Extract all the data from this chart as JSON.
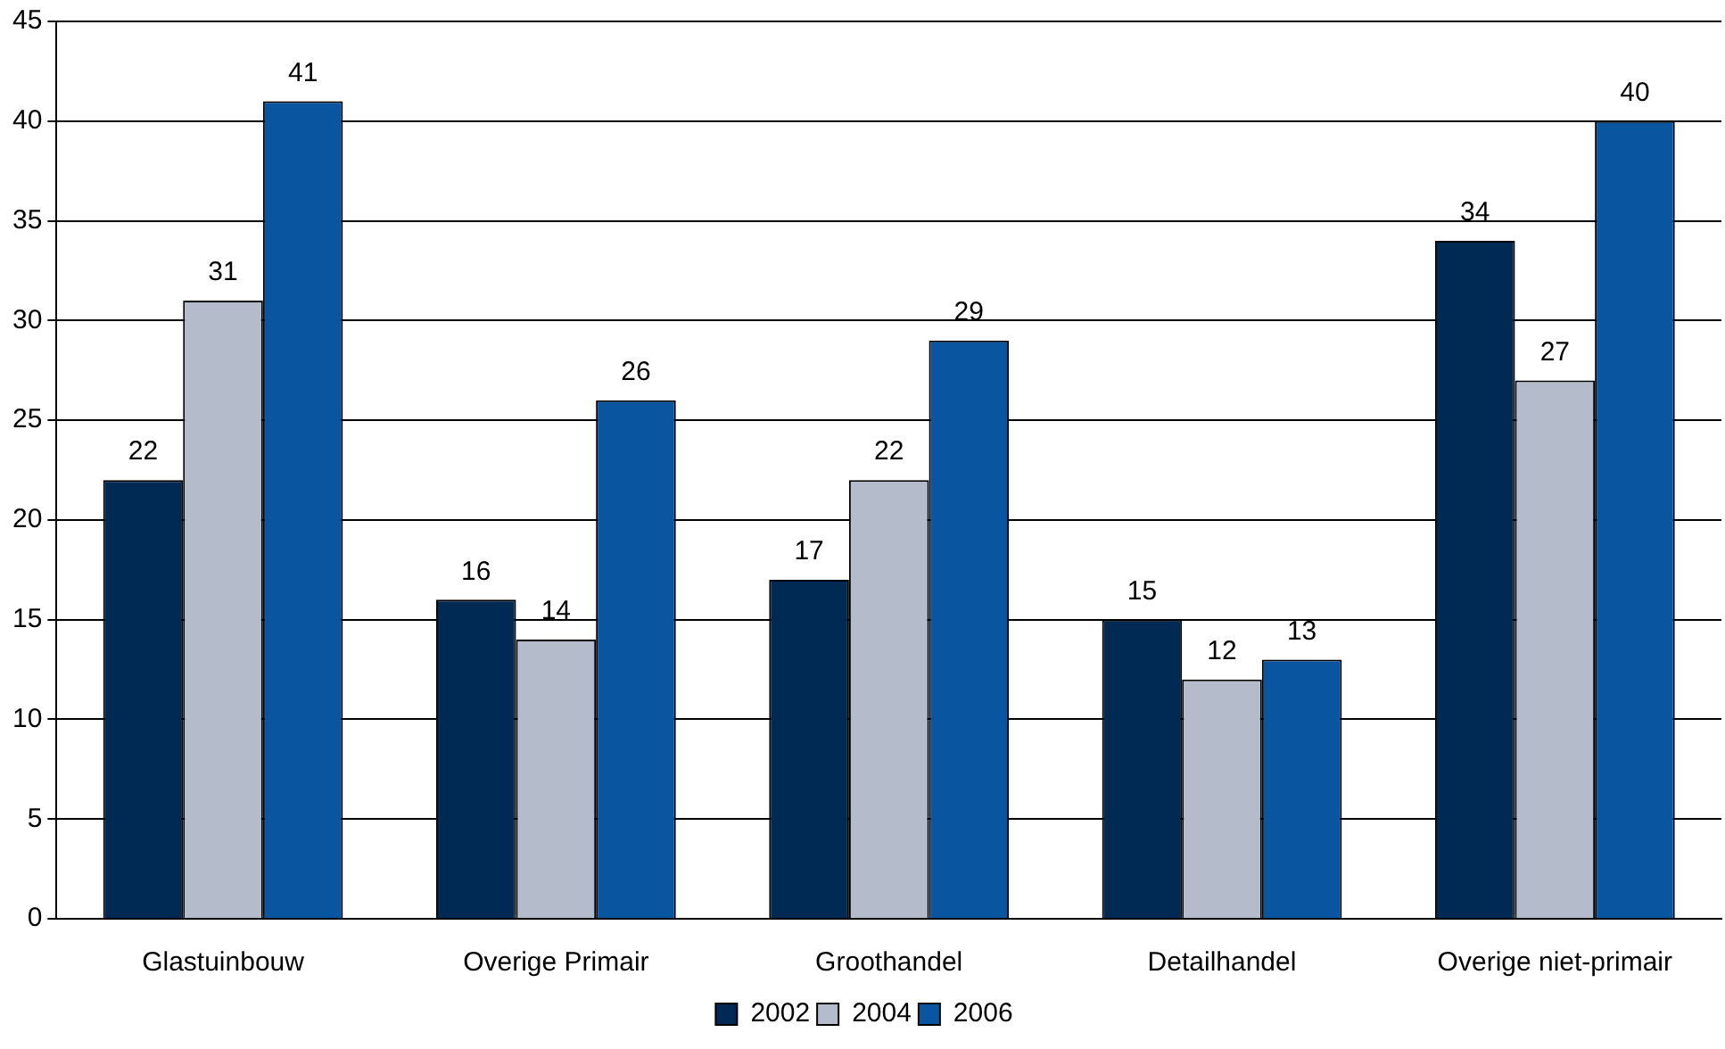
{
  "chart_data": {
    "type": "bar",
    "categories": [
      "Glastuinbouw",
      "Overige Primair",
      "Groothandel",
      "Detailhandel",
      "Overige niet-primair"
    ],
    "series": [
      {
        "name": "2002",
        "color": "#002a54",
        "values": [
          22,
          16,
          17,
          15,
          34
        ]
      },
      {
        "name": "2004",
        "color": "#b4bccc",
        "values": [
          31,
          14,
          22,
          12,
          27
        ]
      },
      {
        "name": "2006",
        "color": "#0a55a0",
        "values": [
          41,
          26,
          29,
          13,
          40
        ]
      }
    ],
    "ylim": [
      0,
      45
    ],
    "yticks": [
      0,
      5,
      10,
      15,
      20,
      25,
      30,
      35,
      40,
      45
    ],
    "grid": "y",
    "legend": "bottom",
    "data_labels": true
  }
}
